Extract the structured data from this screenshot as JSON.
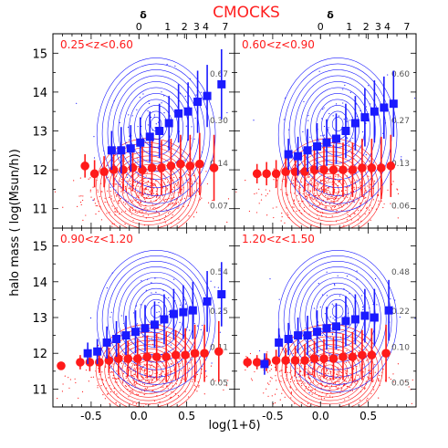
{
  "figure": {
    "title": "CMOCKS",
    "xlabel": "log(1+δ)",
    "ylabel": "halo mass ( log(Msun/h))",
    "top_axis_label": "δ",
    "top_ticks": [
      "0",
      "1",
      "2",
      "3",
      "4",
      "7"
    ],
    "top_tick_values": [
      0,
      1,
      2,
      3,
      4,
      7
    ],
    "x_ticks": [
      "-0.5",
      "0.0",
      "0.5"
    ],
    "y_ticks": [
      "11",
      "12",
      "13",
      "14",
      "15"
    ],
    "xlim": [
      -0.9,
      1.0
    ],
    "ylim": [
      10.5,
      15.5
    ],
    "colors": {
      "title": "#ff2020",
      "red": "#ff1a1a",
      "blue": "#1a1aff",
      "axis": "#000000",
      "contour_label": "#555555"
    }
  },
  "chart_data": [
    {
      "type": "scatter",
      "panel": "top-left",
      "label": "0.25<z<0.60",
      "contour_labels": [
        "0.67",
        "0.30",
        "0.14",
        "0.07"
      ],
      "contour_label_y": [
        14.4,
        13.2,
        12.1,
        11.0
      ],
      "series": [
        {
          "color": "red",
          "marker": "circle",
          "x": [
            -0.55,
            -0.45,
            -0.35,
            -0.25,
            -0.15,
            -0.05,
            0.05,
            0.15,
            0.25,
            0.35,
            0.45,
            0.55,
            0.65,
            0.8
          ],
          "y": [
            12.1,
            11.9,
            11.95,
            12.0,
            12.0,
            12.05,
            12.0,
            12.05,
            12.05,
            12.1,
            12.15,
            12.1,
            12.15,
            12.05
          ],
          "err": [
            0.3,
            0.35,
            0.4,
            0.45,
            0.55,
            0.6,
            0.65,
            0.7,
            0.7,
            0.7,
            0.75,
            0.8,
            0.8,
            0.85
          ]
        },
        {
          "color": "blue",
          "marker": "square",
          "x": [
            -0.3,
            -0.2,
            -0.1,
            0.0,
            0.1,
            0.2,
            0.3,
            0.4,
            0.5,
            0.6,
            0.7,
            0.85
          ],
          "y": [
            12.5,
            12.5,
            12.55,
            12.7,
            12.85,
            13.0,
            13.2,
            13.45,
            13.5,
            13.75,
            13.9,
            14.2
          ],
          "err": [
            0.5,
            0.6,
            0.6,
            0.65,
            0.65,
            0.7,
            0.7,
            0.75,
            0.75,
            0.8,
            0.8,
            0.9
          ]
        }
      ]
    },
    {
      "type": "scatter",
      "panel": "top-right",
      "label": "0.60<z<0.90",
      "contour_labels": [
        "0.60",
        "0.27",
        "0.13",
        "0.06"
      ],
      "contour_label_y": [
        14.4,
        13.2,
        12.1,
        11.0
      ],
      "series": [
        {
          "color": "red",
          "marker": "circle",
          "x": [
            -0.65,
            -0.55,
            -0.45,
            -0.35,
            -0.25,
            -0.15,
            -0.05,
            0.05,
            0.15,
            0.25,
            0.35,
            0.45,
            0.55,
            0.65,
            0.75
          ],
          "y": [
            11.9,
            11.9,
            11.9,
            11.95,
            11.95,
            11.95,
            12.0,
            12.0,
            12.0,
            12.0,
            12.0,
            12.05,
            12.05,
            12.05,
            12.1
          ],
          "err": [
            0.25,
            0.3,
            0.35,
            0.4,
            0.45,
            0.5,
            0.55,
            0.6,
            0.65,
            0.7,
            0.7,
            0.75,
            0.75,
            0.8,
            0.8
          ]
        },
        {
          "color": "blue",
          "marker": "square",
          "x": [
            -0.35,
            -0.25,
            -0.15,
            -0.05,
            0.05,
            0.15,
            0.25,
            0.35,
            0.45,
            0.55,
            0.65,
            0.75
          ],
          "y": [
            12.4,
            12.35,
            12.5,
            12.6,
            12.7,
            12.8,
            13.0,
            13.2,
            13.35,
            13.5,
            13.6,
            13.7
          ],
          "err": [
            0.4,
            0.5,
            0.55,
            0.6,
            0.6,
            0.65,
            0.7,
            0.7,
            0.75,
            0.8,
            0.8,
            0.85
          ]
        }
      ]
    },
    {
      "type": "scatter",
      "panel": "bottom-left",
      "label": "0.90<z<1.20",
      "contour_labels": [
        "0.54",
        "0.25",
        "0.11",
        "0.05"
      ],
      "contour_label_y": [
        14.2,
        13.1,
        12.1,
        11.1
      ],
      "series": [
        {
          "color": "red",
          "marker": "circle",
          "x": [
            -0.8,
            -0.6,
            -0.5,
            -0.4,
            -0.3,
            -0.2,
            -0.1,
            0.0,
            0.1,
            0.2,
            0.3,
            0.4,
            0.5,
            0.6,
            0.7,
            0.85
          ],
          "y": [
            11.65,
            11.75,
            11.75,
            11.75,
            11.8,
            11.85,
            11.85,
            11.85,
            11.9,
            11.9,
            11.9,
            11.95,
            11.95,
            12.0,
            12.0,
            12.05
          ],
          "err": [
            0.1,
            0.2,
            0.25,
            0.3,
            0.35,
            0.45,
            0.5,
            0.55,
            0.6,
            0.65,
            0.7,
            0.7,
            0.75,
            0.8,
            0.8,
            0.85
          ]
        },
        {
          "color": "blue",
          "marker": "square",
          "x": [
            -0.55,
            -0.45,
            -0.35,
            -0.25,
            -0.15,
            -0.05,
            0.05,
            0.15,
            0.25,
            0.35,
            0.45,
            0.55,
            0.7,
            0.85
          ],
          "y": [
            12.0,
            12.05,
            12.3,
            12.4,
            12.5,
            12.6,
            12.7,
            12.8,
            12.95,
            13.1,
            13.15,
            13.2,
            13.45,
            13.65
          ],
          "err": [
            0.3,
            0.35,
            0.45,
            0.5,
            0.55,
            0.6,
            0.65,
            0.65,
            0.7,
            0.7,
            0.75,
            0.8,
            0.85,
            0.9
          ]
        }
      ]
    },
    {
      "type": "scatter",
      "panel": "bottom-right",
      "label": "1.20<z<1.50",
      "contour_labels": [
        "0.48",
        "0.22",
        "0.10",
        "0.05"
      ],
      "contour_label_y": [
        14.2,
        13.1,
        12.1,
        11.1
      ],
      "series": [
        {
          "color": "red",
          "marker": "circle",
          "x": [
            -0.75,
            -0.65,
            -0.55,
            -0.45,
            -0.35,
            -0.25,
            -0.15,
            -0.05,
            0.05,
            0.15,
            0.25,
            0.35,
            0.45,
            0.55,
            0.7
          ],
          "y": [
            11.75,
            11.75,
            11.75,
            11.8,
            11.8,
            11.8,
            11.8,
            11.85,
            11.85,
            11.85,
            11.9,
            11.9,
            11.95,
            11.95,
            12.0
          ],
          "err": [
            0.15,
            0.2,
            0.25,
            0.3,
            0.35,
            0.4,
            0.45,
            0.5,
            0.55,
            0.6,
            0.65,
            0.7,
            0.7,
            0.75,
            0.8
          ]
        },
        {
          "color": "blue",
          "marker": "square",
          "x": [
            -0.6,
            -0.45,
            -0.35,
            -0.25,
            -0.15,
            -0.05,
            0.05,
            0.15,
            0.25,
            0.35,
            0.45,
            0.55,
            0.7
          ],
          "y": [
            11.7,
            12.3,
            12.4,
            12.5,
            12.5,
            12.6,
            12.7,
            12.75,
            12.9,
            12.95,
            13.05,
            13.0,
            13.2
          ],
          "err": [
            0.3,
            0.4,
            0.45,
            0.5,
            0.55,
            0.6,
            0.6,
            0.65,
            0.7,
            0.7,
            0.75,
            0.8,
            0.85
          ]
        }
      ]
    }
  ]
}
